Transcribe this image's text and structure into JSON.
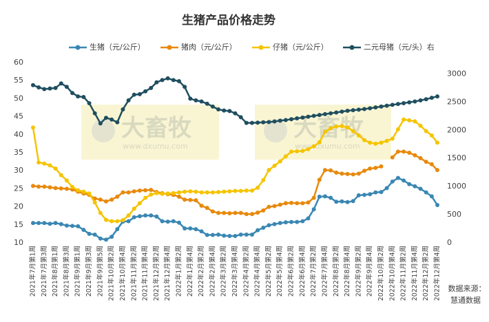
{
  "chart_data": {
    "type": "line",
    "title": "生猪产品价格走势",
    "categories": [
      "2021年7月第1周",
      null,
      "2021年7月第3周",
      null,
      "2021年8月第1周",
      null,
      "2021年8月第3周",
      null,
      "2021年9月第1周",
      null,
      "2021年9月第3周",
      null,
      "2021年9月第5周",
      null,
      "2021年10月第2周",
      null,
      "2021年10月第4周",
      null,
      "2021年11月第2周",
      null,
      "2021年11月第4周",
      null,
      "2021年12月第2周",
      null,
      "2021年12月第4周",
      null,
      "2022年1月第2周",
      null,
      "2022年1月第4周",
      null,
      "2022年2月第2周",
      null,
      "2022年2月第4周",
      null,
      "2022年3月第2周",
      null,
      "2022年3月第4周",
      null,
      "2022年4月第2周",
      null,
      "2022年4月第4周",
      null,
      "2022年5月第2周",
      null,
      "2022年5月第4周",
      null,
      "2022年6月第2周",
      null,
      "2022年6月第4周",
      null,
      "2022年7月第2周",
      null,
      "2022年7月第4周",
      null,
      "2022年8月第2周",
      null,
      "2022年8月第4周",
      null,
      "2022年9月第2周",
      null,
      "2022年9月第4周",
      null,
      "2022年10月第2周",
      null,
      "2022年10月第4周",
      null,
      "2022年11月第2周",
      null,
      "2022年11月第4周",
      null,
      "2022年12月第2周",
      null,
      "2022年12月第4周"
    ],
    "series": [
      {
        "name": "生猪（元/公斤）",
        "color": "#3a87b3",
        "values": [
          15.5,
          15.5,
          15.5,
          15.3,
          15.5,
          15.2,
          14.8,
          14.7,
          14.6,
          13.6,
          12.5,
          12.3,
          11.2,
          10.9,
          11.7,
          13.8,
          15.9,
          16.0,
          17.1,
          17.4,
          17.6,
          17.6,
          17.3,
          16.0,
          15.9,
          16.0,
          15.6,
          14.0,
          14.0,
          13.8,
          13.2,
          12.2,
          12.2,
          12.3,
          12.0,
          11.9,
          11.9,
          12.3,
          12.3,
          12.3,
          13.5,
          14.2,
          14.9,
          15.2,
          15.5,
          15.7,
          15.8,
          15.8,
          16.0,
          16.8,
          19.3,
          22.8,
          22.9,
          22.5,
          21.4,
          21.5,
          21.3,
          21.6,
          23.2,
          23.3,
          23.5,
          24.0,
          24.1,
          25.2,
          27.0,
          28.0,
          27.3,
          26.3,
          25.7,
          25.0,
          24.0,
          22.9,
          20.5
        ]
      },
      {
        "name": "猪肉（元/公斤）",
        "color": "#e8890c",
        "values": [
          25.8,
          25.6,
          25.6,
          25.4,
          25.2,
          25.1,
          25.0,
          24.8,
          24.2,
          23.7,
          23.3,
          22.3,
          22.0,
          21.5,
          22.0,
          22.8,
          24.0,
          24.0,
          24.3,
          24.5,
          24.6,
          24.7,
          24.1,
          23.8,
          23.5,
          23.3,
          22.8,
          22.0,
          21.9,
          21.8,
          20.3,
          19.7,
          18.7,
          18.3,
          18.3,
          18.2,
          18.3,
          18.3,
          18.0,
          18.0,
          18.4,
          19.0,
          20.0,
          20.2,
          20.6,
          21.0,
          21.1,
          21.0,
          21.0,
          21.2,
          22.5,
          27.5,
          30.2,
          30.1,
          29.5,
          29.2,
          29.1,
          29.0,
          29.2,
          30.0,
          30.6,
          30.8,
          31.2,
          null,
          33.7,
          35.3,
          35.3,
          35.0,
          34.3,
          33.5,
          32.5,
          31.8,
          30.2
        ]
      },
      {
        "name": "仔猪（元/公斤）",
        "color": "#f5c400",
        "values": [
          42,
          32.3,
          32.0,
          31.5,
          30.6,
          28.8,
          27.3,
          25.5,
          24.6,
          24.2,
          23.7,
          21.2,
          18.3,
          16.4,
          16.0,
          16.0,
          16.3,
          17.6,
          19.5,
          21.0,
          22.5,
          23.4,
          23.8,
          23.6,
          23.7,
          23.8,
          24.0,
          24.2,
          24.3,
          24.2,
          24.0,
          24.0,
          24.0,
          24.1,
          24.2,
          24.3,
          24.4,
          24.4,
          24.5,
          24.5,
          25.3,
          27.4,
          30.2,
          31.4,
          32.6,
          34.0,
          35.3,
          35.4,
          35.5,
          36.0,
          36.8,
          37.9,
          40.8,
          41.8,
          42.3,
          42.4,
          42.0,
          41.0,
          39.8,
          38.5,
          37.8,
          37.5,
          37.8,
          38.3,
          38.9,
          41.5,
          44.2,
          44.0,
          43.7,
          42.5,
          41.0,
          39.8,
          37.8
        ]
      },
      {
        "name": "二元母猪（元/头）右",
        "color": "#1f4e5f",
        "axis": "y2",
        "values": [
          2800,
          2760,
          2730,
          2740,
          2750,
          2830,
          2770,
          2660,
          2600,
          2590,
          2480,
          2300,
          2120,
          2220,
          2190,
          2140,
          2370,
          2530,
          2630,
          2640,
          2690,
          2750,
          2850,
          2890,
          2920,
          2890,
          2870,
          2770,
          2560,
          2530,
          2510,
          2470,
          2420,
          2370,
          2350,
          2340,
          2300,
          2230,
          2130,
          2130,
          2135,
          2140,
          2145,
          2155,
          2170,
          2180,
          2195,
          2210,
          2225,
          2240,
          2255,
          2270,
          2285,
          2300,
          2315,
          2330,
          2345,
          2355,
          2365,
          2375,
          2390,
          2405,
          2420,
          2435,
          2450,
          2465,
          2480,
          2495,
          2510,
          2530,
          2550,
          2575,
          2600
        ]
      }
    ],
    "ylim": [
      10,
      60
    ],
    "yticks": [
      10,
      15,
      20,
      25,
      30,
      35,
      40,
      45,
      50,
      55,
      60
    ],
    "y2lim": [
      0,
      3200
    ],
    "y2ticks": [
      0,
      500,
      1000,
      1500,
      2000,
      2500,
      3000
    ],
    "legend": "top",
    "watermark": {
      "text": "大畜牧",
      "url": "www.dxumu.com"
    },
    "source": [
      "数据来源：",
      "慧通数据"
    ]
  }
}
